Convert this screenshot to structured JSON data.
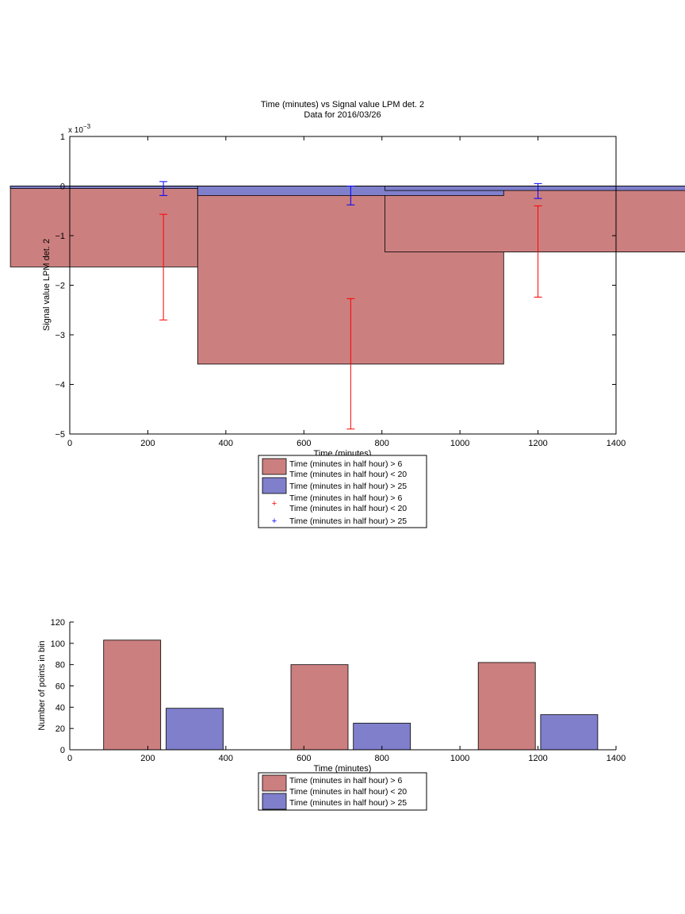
{
  "chart_data": [
    {
      "type": "bar",
      "title": "Time (minutes) vs Signal value LPM det. 2",
      "subtitle": "Data for 2016/03/26",
      "xlabel": "Time (minutes)",
      "ylabel": "Signal value LPM det. 2",
      "exponent_label": "x 10",
      "exponent_power": "−3",
      "xlim": [
        0,
        1400
      ],
      "ylim": [
        -5,
        1
      ],
      "xticks": [
        "0",
        "200",
        "400",
        "600",
        "800",
        "1000",
        "1200",
        "1400"
      ],
      "yticks": [
        "1",
        "0",
        "−1",
        "−2",
        "−3",
        "−4",
        "−5"
      ],
      "categories": [
        240,
        720,
        1200
      ],
      "series": [
        {
          "name": "Time (minutes in half hour) > 6\nTime (minutes in half hour) < 20",
          "color": "#cc7f7f",
          "errorbar_color": "#ff0000",
          "values": [
            -1.63,
            -3.59,
            -1.33
          ],
          "err_low": [
            -2.7,
            -4.9,
            -2.24
          ],
          "err_high": [
            -0.57,
            -2.27,
            -0.4
          ]
        },
        {
          "name": "Time (minutes in half hour) > 25",
          "color": "#7f7fcc",
          "errorbar_color": "#0000ff",
          "values": [
            -0.05,
            -0.19,
            -0.09
          ],
          "err_low": [
            -0.19,
            -0.38,
            -0.25
          ],
          "err_high": [
            0.09,
            0.0,
            0.05
          ]
        }
      ],
      "legend": [
        "Time (minutes in half hour) > 6",
        "Time (minutes in half hour) < 20",
        "Time (minutes in half hour) > 25",
        "Time (minutes in half hour) > 6",
        "Time (minutes in half hour) < 20",
        "Time (minutes in half hour) > 25"
      ],
      "legend_position": "below"
    },
    {
      "type": "bar",
      "xlabel": "Time (minutes)",
      "ylabel": "Number of points in bin",
      "xlim": [
        0,
        1400
      ],
      "ylim": [
        0,
        120
      ],
      "xticks": [
        "0",
        "200",
        "400",
        "600",
        "800",
        "1000",
        "1200",
        "1400"
      ],
      "yticks": [
        "0",
        "20",
        "40",
        "60",
        "80",
        "100",
        "120"
      ],
      "series": [
        {
          "name": "Time (minutes in half hour) > 6\nTime (minutes in half hour) < 20",
          "color": "#cc7f7f",
          "x": [
            160,
            640,
            1120
          ],
          "values": [
            103,
            80,
            82
          ]
        },
        {
          "name": "Time (minutes in half hour) > 25",
          "color": "#7f7fcc",
          "x": [
            320,
            800,
            1280
          ],
          "values": [
            39,
            25,
            33
          ]
        }
      ],
      "legend": [
        "Time (minutes in half hour) > 6",
        "Time (minutes in half hour) < 20",
        "Time (minutes in half hour) > 25"
      ],
      "legend_position": "below"
    }
  ]
}
